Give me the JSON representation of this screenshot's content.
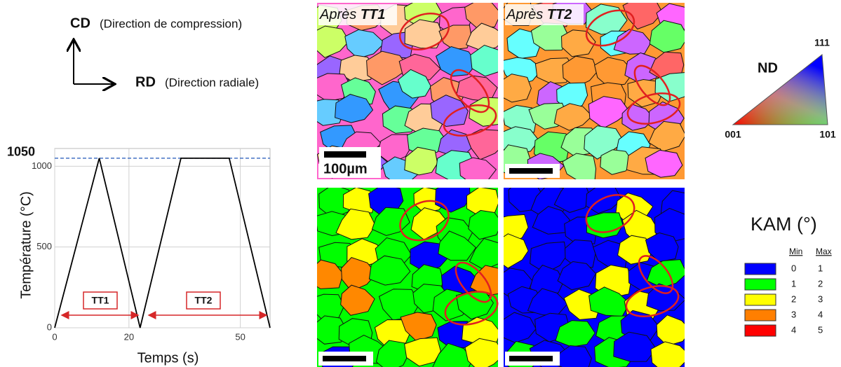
{
  "axes_legend": {
    "cd": "CD",
    "cd_desc": "(Direction de compression)",
    "rd": "RD",
    "rd_desc": "(Direction radiale)"
  },
  "chart_data": {
    "type": "line",
    "x_label": "Temps (s)",
    "y_label": "Température (°C)",
    "x": [
      0,
      12,
      23,
      34,
      47,
      58
    ],
    "series": [
      {
        "color": "#000000",
        "values": [
          0,
          1050,
          0,
          1050,
          1050,
          0
        ]
      }
    ],
    "xlim": [
      0,
      58
    ],
    "xticks": [
      0,
      20,
      50
    ],
    "ylim": [
      0,
      1110
    ],
    "yticks": [
      0,
      500,
      1000
    ],
    "grid": true,
    "reference_line": 1050,
    "reference_color": "#4472c4",
    "annotations": [
      "TT1",
      "TT2"
    ],
    "annotation_color": "#d62728"
  },
  "maps": {
    "titles": [
      {
        "prefix": "Après",
        "name": "TT1"
      },
      {
        "prefix": "Après",
        "name": "TT2"
      }
    ],
    "scale_bar": "100µm"
  },
  "ipf": {
    "title": "ND",
    "corners": [
      "111",
      "001",
      "101"
    ]
  },
  "kam": {
    "title": "KAM (°)",
    "headers": [
      "Min",
      "Max"
    ],
    "rows": [
      {
        "color": "#0000ff",
        "min": 0,
        "max": 1
      },
      {
        "color": "#00ff00",
        "min": 1,
        "max": 2
      },
      {
        "color": "#ffff00",
        "min": 2,
        "max": 3
      },
      {
        "color": "#ff7f00",
        "min": 3,
        "max": 4
      },
      {
        "color": "#ff0000",
        "min": 4,
        "max": 5
      }
    ]
  }
}
